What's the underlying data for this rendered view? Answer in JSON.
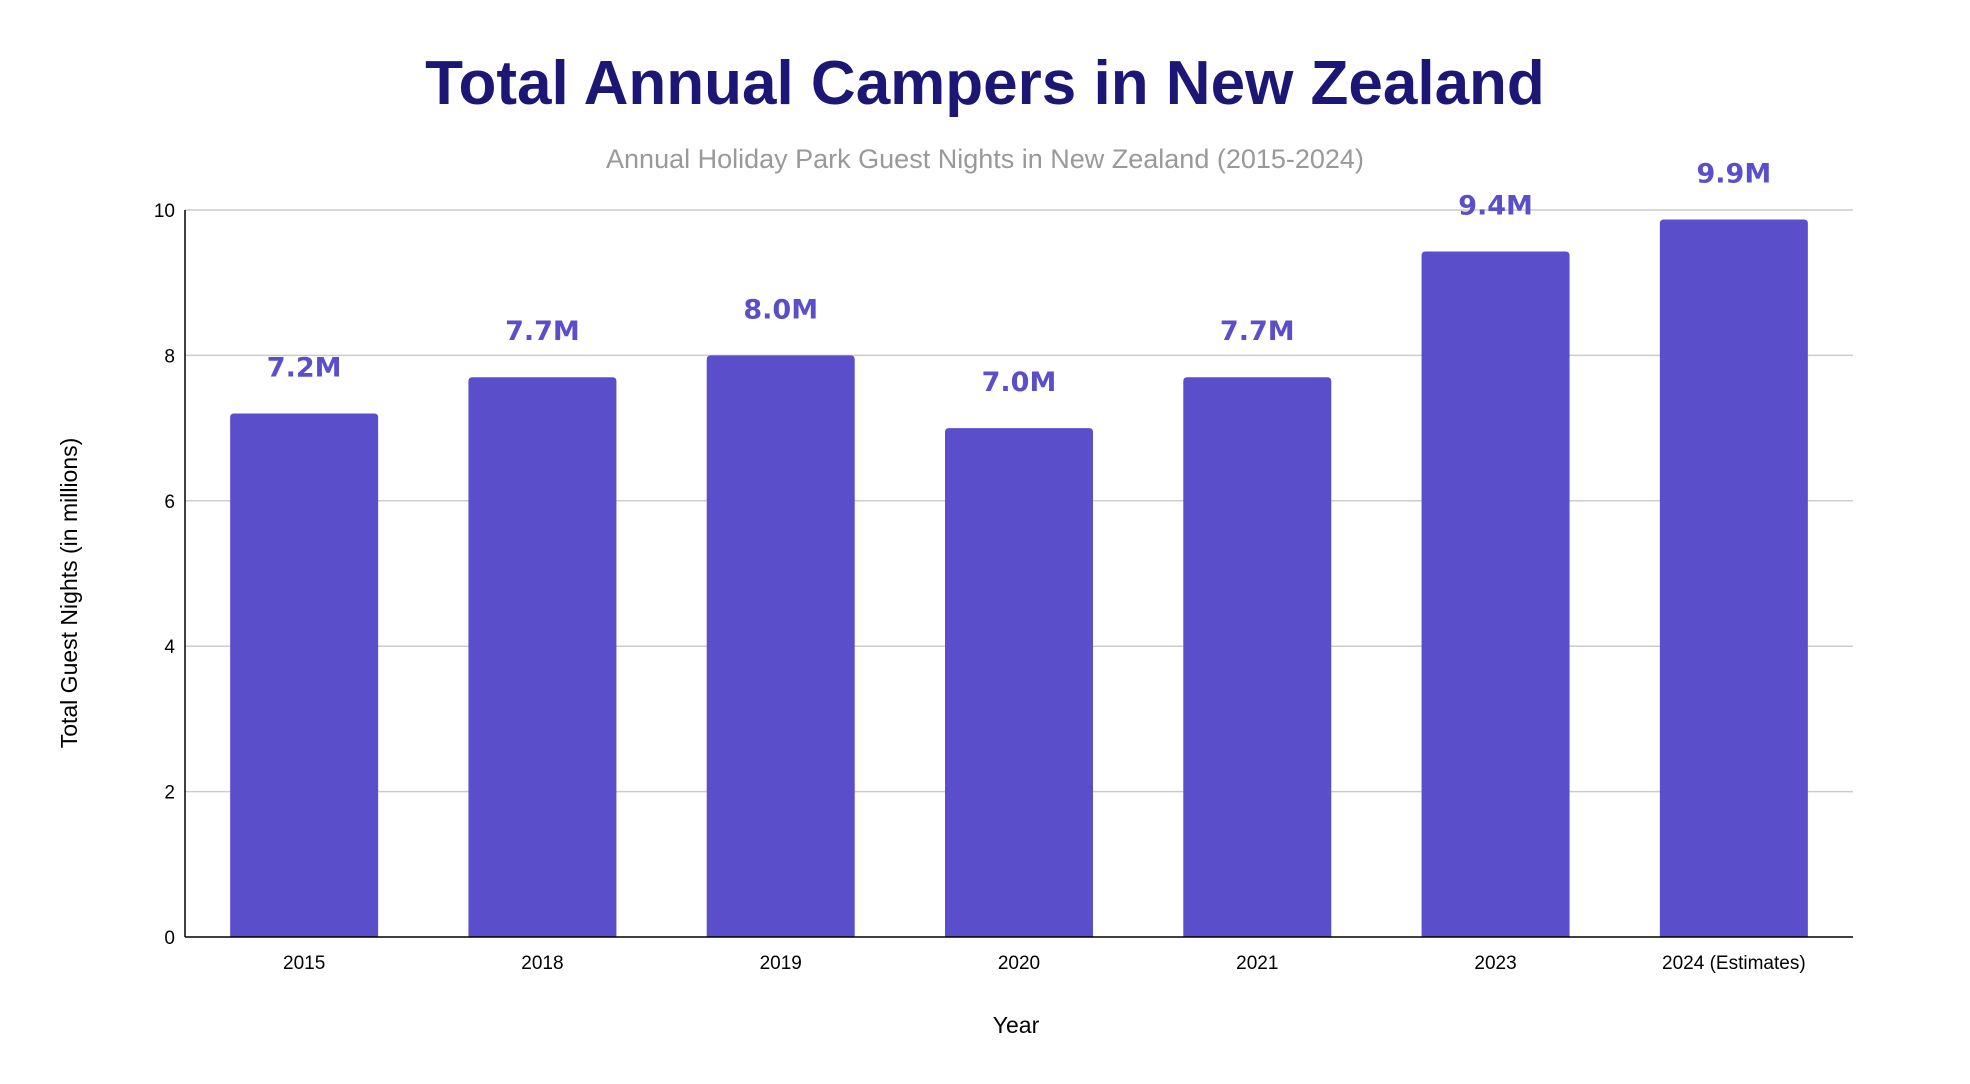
{
  "chart_data": {
    "type": "bar",
    "title": "Total Annual Campers in New Zealand",
    "subtitle": "Annual Holiday Park Guest Nights in New Zealand (2015-2024)",
    "xlabel": "Year",
    "ylabel": "Total Guest Nights (in millions)",
    "categories": [
      "2015",
      "2018",
      "2019",
      "2020",
      "2021",
      "2023",
      "2024 (Estimates)"
    ],
    "values": [
      7.2,
      7.7,
      8.0,
      7.0,
      7.7,
      9.43,
      9.87
    ],
    "data_labels": [
      "7.2M",
      "7.7M",
      "8.0M",
      "7.0M",
      "7.7M",
      "9.4M",
      "9.9M"
    ],
    "ylim": [
      0,
      10
    ],
    "yticks": [
      0,
      2,
      4,
      6,
      8,
      10
    ],
    "grid": true,
    "legend": "none",
    "colors": {
      "title": "#1c1675",
      "subtitle": "#999999",
      "bar": "#5b4ecb",
      "data_label": "#5b4ecb",
      "grid": "#cccccc",
      "axis": "#000000"
    }
  }
}
